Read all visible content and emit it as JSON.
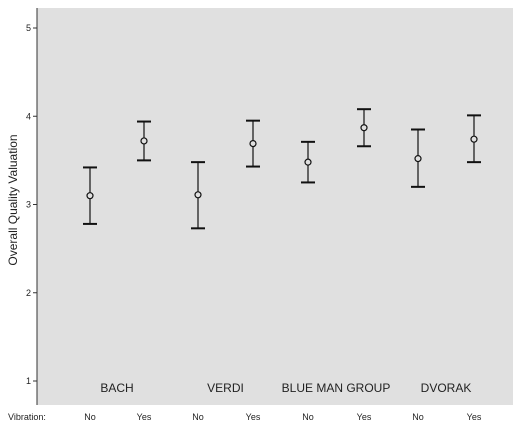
{
  "chart_data": {
    "type": "errorbar",
    "ylabel": "Overall Quality Valuation",
    "xlabel": "",
    "ylim": [
      0.8,
      5.2
    ],
    "yticks": [
      "1",
      "2",
      "3",
      "4",
      "5"
    ],
    "grid": false,
    "x_prefix_label": "Vibration:",
    "groups": [
      "BACH",
      "VERDI",
      "BLUE MAN GROUP",
      "DVORAK"
    ],
    "categories": [
      "No",
      "Yes",
      "No",
      "Yes",
      "No",
      "Yes",
      "No",
      "Yes"
    ],
    "means": [
      3.1,
      3.72,
      3.11,
      3.69,
      3.48,
      3.87,
      3.52,
      3.74
    ],
    "lower": [
      2.78,
      3.5,
      2.73,
      3.43,
      3.25,
      3.66,
      3.2,
      3.48
    ],
    "upper": [
      3.42,
      3.94,
      3.48,
      3.95,
      3.71,
      4.08,
      3.85,
      4.01
    ],
    "colors": {
      "plot_background": "#e0e0e0",
      "marks": "#111111",
      "axis": "#333333"
    }
  }
}
